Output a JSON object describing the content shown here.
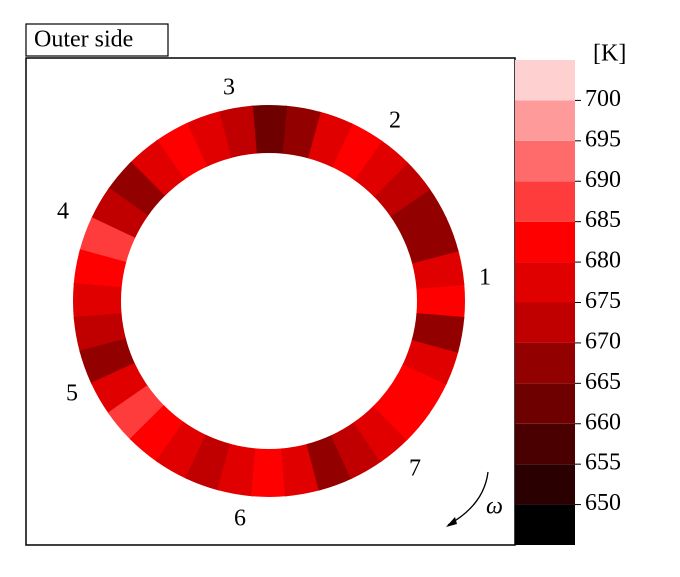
{
  "chart_data": {
    "type": "ring-contour",
    "title": "Outer side",
    "unit_label": "[K]",
    "x": [
      0,
      10,
      20,
      30,
      40,
      50,
      60,
      70,
      80,
      90,
      100,
      110,
      120,
      130,
      140,
      150,
      160,
      170,
      180,
      190,
      200,
      210,
      220,
      230,
      240,
      250,
      260,
      270,
      280,
      290,
      300,
      310,
      320,
      330,
      340,
      350
    ],
    "values": [
      680,
      675,
      668,
      665,
      670,
      678,
      680,
      675,
      668,
      660,
      670,
      678,
      680,
      675,
      668,
      672,
      685,
      682,
      678,
      670,
      665,
      675,
      685,
      680,
      675,
      672,
      675,
      682,
      675,
      668,
      672,
      675,
      680,
      682,
      675,
      668
    ],
    "blade_labels": [
      "1",
      "2",
      "3",
      "4",
      "5",
      "6",
      "7"
    ],
    "rotation_label": "ω",
    "clim": [
      645,
      705
    ],
    "cticks": [
      650,
      655,
      660,
      665,
      670,
      675,
      680,
      685,
      690,
      695,
      700
    ],
    "colors": [
      "#000000",
      "#2a0000",
      "#4a0000",
      "#6e0000",
      "#920000",
      "#c00000",
      "#e00000",
      "#ff0000",
      "#ff3c3c",
      "#ff6a6a",
      "#ff9a9a",
      "#ffd0d0"
    ]
  }
}
